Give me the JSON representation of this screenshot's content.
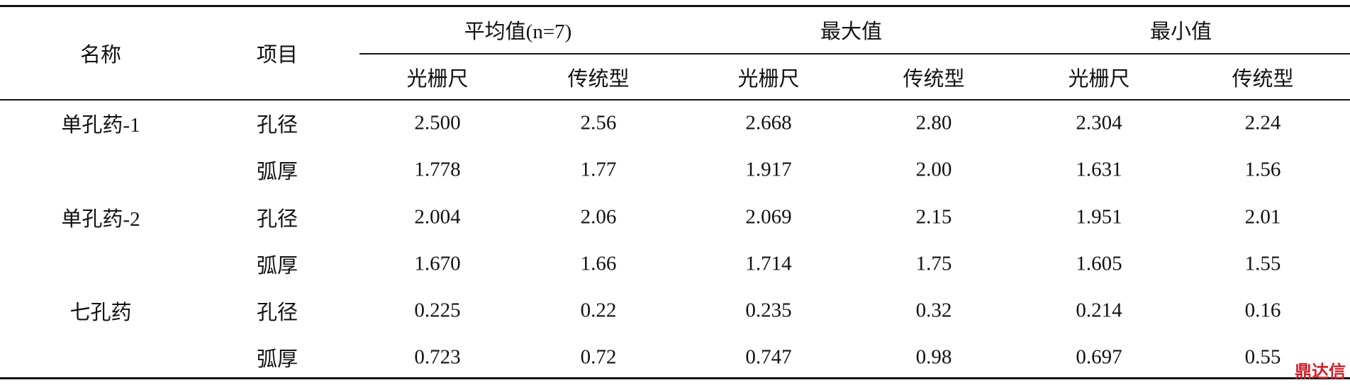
{
  "table": {
    "header": {
      "name": "名称",
      "item": "项目",
      "groups": [
        {
          "title": "平均值(n=7)",
          "sub": [
            "光栅尺",
            "传统型"
          ]
        },
        {
          "title": "最大值",
          "sub": [
            "光栅尺",
            "传统型"
          ]
        },
        {
          "title": "最小值",
          "sub": [
            "光栅尺",
            "传统型"
          ]
        }
      ]
    },
    "rows": [
      [
        "单孔药-1",
        "孔径",
        "2.500",
        "2.56",
        "2.668",
        "2.80",
        "2.304",
        "2.24"
      ],
      [
        null,
        "弧厚",
        "1.778",
        "1.77",
        "1.917",
        "2.00",
        "1.631",
        "1.56"
      ],
      [
        "单孔药-2",
        "孔径",
        "2.004",
        "2.06",
        "2.069",
        "2.15",
        "1.951",
        "2.01"
      ],
      [
        null,
        "弧厚",
        "1.670",
        "1.66",
        "1.714",
        "1.75",
        "1.605",
        "1.55"
      ],
      [
        "七孔药",
        "孔径",
        "0.225",
        "0.22",
        "0.235",
        "0.32",
        "0.214",
        "0.16"
      ],
      [
        null,
        "弧厚",
        "0.723",
        "0.72",
        "0.747",
        "0.98",
        "0.697",
        "0.55"
      ]
    ]
  },
  "watermark": "鼎达信"
}
